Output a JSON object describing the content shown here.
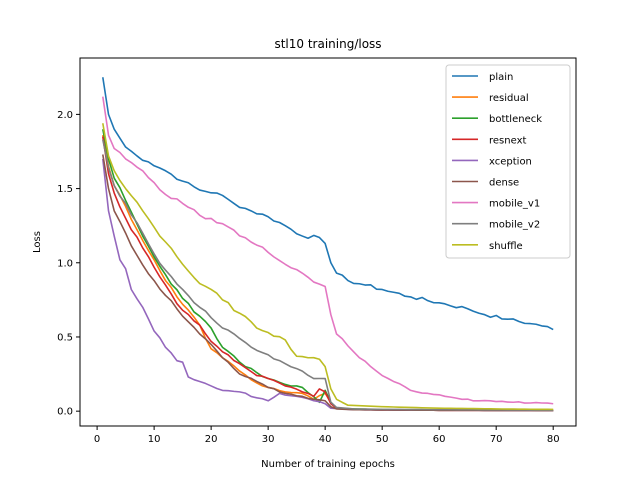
{
  "chart_data": {
    "type": "line",
    "title": "stl10 training/loss",
    "xlabel": "Number of training epochs",
    "ylabel": "Loss",
    "xlim": [
      -3,
      84
    ],
    "ylim": [
      -0.1,
      2.38
    ],
    "xticks": [
      0,
      10,
      20,
      30,
      40,
      50,
      60,
      70,
      80
    ],
    "yticks": [
      0.0,
      0.5,
      1.0,
      1.5,
      2.0
    ],
    "xtick_labels": [
      "0",
      "10",
      "20",
      "30",
      "40",
      "50",
      "60",
      "70",
      "80"
    ],
    "ytick_labels": [
      "0.0",
      "0.5",
      "1.0",
      "1.5",
      "2.0"
    ],
    "grid": false,
    "legend_position": "top-right",
    "x_start": 1,
    "x_end": 80,
    "series": [
      {
        "name": "plain",
        "color": "#1f77b4",
        "keypoints": [
          [
            1,
            2.25
          ],
          [
            2,
            2.0
          ],
          [
            3,
            1.9
          ],
          [
            5,
            1.78
          ],
          [
            7,
            1.72
          ],
          [
            9,
            1.68
          ],
          [
            12,
            1.62
          ],
          [
            15,
            1.55
          ],
          [
            18,
            1.49
          ],
          [
            21,
            1.47
          ],
          [
            24,
            1.4
          ],
          [
            27,
            1.35
          ],
          [
            30,
            1.31
          ],
          [
            33,
            1.25
          ],
          [
            36,
            1.18
          ],
          [
            39,
            1.17
          ],
          [
            40,
            1.13
          ],
          [
            41,
            1.0
          ],
          [
            42,
            0.93
          ],
          [
            44,
            0.88
          ],
          [
            47,
            0.85
          ],
          [
            50,
            0.82
          ],
          [
            55,
            0.77
          ],
          [
            60,
            0.73
          ],
          [
            65,
            0.69
          ],
          [
            68,
            0.65
          ],
          [
            72,
            0.62
          ],
          [
            76,
            0.59
          ],
          [
            79,
            0.57
          ],
          [
            80,
            0.55
          ]
        ]
      },
      {
        "name": "residual",
        "color": "#ff7f0e",
        "keypoints": [
          [
            1,
            1.86
          ],
          [
            2,
            1.65
          ],
          [
            3,
            1.52
          ],
          [
            5,
            1.38
          ],
          [
            8,
            1.15
          ],
          [
            10,
            1.02
          ],
          [
            12,
            0.88
          ],
          [
            15,
            0.72
          ],
          [
            18,
            0.58
          ],
          [
            20,
            0.42
          ],
          [
            22,
            0.36
          ],
          [
            25,
            0.27
          ],
          [
            28,
            0.19
          ],
          [
            30,
            0.16
          ],
          [
            33,
            0.13
          ],
          [
            36,
            0.12
          ],
          [
            38,
            0.08
          ],
          [
            40,
            0.12
          ],
          [
            41,
            0.06
          ],
          [
            42,
            0.02
          ],
          [
            45,
            0.012
          ],
          [
            50,
            0.008
          ],
          [
            60,
            0.006
          ],
          [
            70,
            0.005
          ],
          [
            80,
            0.004
          ]
        ]
      },
      {
        "name": "bottleneck",
        "color": "#2ca02c",
        "keypoints": [
          [
            1,
            1.9
          ],
          [
            2,
            1.7
          ],
          [
            3,
            1.57
          ],
          [
            5,
            1.42
          ],
          [
            8,
            1.18
          ],
          [
            10,
            1.04
          ],
          [
            12,
            0.92
          ],
          [
            15,
            0.76
          ],
          [
            18,
            0.64
          ],
          [
            20,
            0.56
          ],
          [
            22,
            0.43
          ],
          [
            25,
            0.33
          ],
          [
            28,
            0.26
          ],
          [
            30,
            0.22
          ],
          [
            33,
            0.18
          ],
          [
            36,
            0.16
          ],
          [
            39,
            0.06
          ],
          [
            40,
            0.14
          ],
          [
            41,
            0.06
          ],
          [
            42,
            0.02
          ],
          [
            45,
            0.015
          ],
          [
            50,
            0.01
          ],
          [
            60,
            0.008
          ],
          [
            70,
            0.006
          ],
          [
            80,
            0.005
          ]
        ]
      },
      {
        "name": "resnext",
        "color": "#d62728",
        "keypoints": [
          [
            1,
            1.85
          ],
          [
            2,
            1.6
          ],
          [
            3,
            1.47
          ],
          [
            5,
            1.3
          ],
          [
            8,
            1.1
          ],
          [
            10,
            0.97
          ],
          [
            12,
            0.85
          ],
          [
            15,
            0.68
          ],
          [
            18,
            0.58
          ],
          [
            20,
            0.47
          ],
          [
            22,
            0.4
          ],
          [
            25,
            0.32
          ],
          [
            28,
            0.24
          ],
          [
            30,
            0.22
          ],
          [
            33,
            0.17
          ],
          [
            36,
            0.13
          ],
          [
            38,
            0.1
          ],
          [
            39,
            0.15
          ],
          [
            40,
            0.13
          ],
          [
            41,
            0.05
          ],
          [
            42,
            0.02
          ],
          [
            45,
            0.012
          ],
          [
            50,
            0.008
          ],
          [
            60,
            0.006
          ],
          [
            70,
            0.005
          ],
          [
            80,
            0.004
          ]
        ]
      },
      {
        "name": "xception",
        "color": "#9467bd",
        "keypoints": [
          [
            1,
            1.7
          ],
          [
            2,
            1.35
          ],
          [
            3,
            1.18
          ],
          [
            4,
            1.02
          ],
          [
            5,
            0.96
          ],
          [
            6,
            0.82
          ],
          [
            8,
            0.7
          ],
          [
            10,
            0.54
          ],
          [
            12,
            0.43
          ],
          [
            14,
            0.34
          ],
          [
            15,
            0.33
          ],
          [
            16,
            0.23
          ],
          [
            18,
            0.2
          ],
          [
            20,
            0.17
          ],
          [
            22,
            0.14
          ],
          [
            25,
            0.13
          ],
          [
            28,
            0.09
          ],
          [
            30,
            0.07
          ],
          [
            32,
            0.12
          ],
          [
            35,
            0.1
          ],
          [
            38,
            0.07
          ],
          [
            40,
            0.05
          ],
          [
            41,
            0.02
          ],
          [
            45,
            0.01
          ],
          [
            50,
            0.008
          ],
          [
            60,
            0.006
          ],
          [
            70,
            0.005
          ],
          [
            80,
            0.004
          ]
        ]
      },
      {
        "name": "dense",
        "color": "#8c564b",
        "keypoints": [
          [
            1,
            1.73
          ],
          [
            2,
            1.5
          ],
          [
            3,
            1.35
          ],
          [
            5,
            1.2
          ],
          [
            7,
            1.05
          ],
          [
            10,
            0.88
          ],
          [
            12,
            0.78
          ],
          [
            15,
            0.64
          ],
          [
            18,
            0.52
          ],
          [
            20,
            0.45
          ],
          [
            22,
            0.36
          ],
          [
            25,
            0.25
          ],
          [
            28,
            0.2
          ],
          [
            30,
            0.16
          ],
          [
            33,
            0.12
          ],
          [
            36,
            0.1
          ],
          [
            38,
            0.08
          ],
          [
            40,
            0.07
          ],
          [
            41,
            0.03
          ],
          [
            42,
            0.015
          ],
          [
            45,
            0.01
          ],
          [
            50,
            0.008
          ],
          [
            60,
            0.006
          ],
          [
            70,
            0.005
          ],
          [
            80,
            0.004
          ]
        ]
      },
      {
        "name": "mobile_v1",
        "color": "#e377c2",
        "keypoints": [
          [
            1,
            2.12
          ],
          [
            2,
            1.86
          ],
          [
            3,
            1.77
          ],
          [
            5,
            1.7
          ],
          [
            8,
            1.62
          ],
          [
            10,
            1.54
          ],
          [
            12,
            1.46
          ],
          [
            15,
            1.4
          ],
          [
            18,
            1.32
          ],
          [
            21,
            1.27
          ],
          [
            24,
            1.22
          ],
          [
            27,
            1.14
          ],
          [
            30,
            1.07
          ],
          [
            33,
            0.99
          ],
          [
            36,
            0.93
          ],
          [
            38,
            0.87
          ],
          [
            40,
            0.84
          ],
          [
            41,
            0.65
          ],
          [
            42,
            0.52
          ],
          [
            44,
            0.44
          ],
          [
            46,
            0.36
          ],
          [
            48,
            0.3
          ],
          [
            50,
            0.24
          ],
          [
            52,
            0.2
          ],
          [
            55,
            0.14
          ],
          [
            58,
            0.12
          ],
          [
            61,
            0.1
          ],
          [
            64,
            0.08
          ],
          [
            67,
            0.07
          ],
          [
            70,
            0.065
          ],
          [
            73,
            0.06
          ],
          [
            76,
            0.055
          ],
          [
            80,
            0.05
          ]
        ]
      },
      {
        "name": "mobile_v2",
        "color": "#7f7f7f",
        "keypoints": [
          [
            1,
            1.83
          ],
          [
            2,
            1.64
          ],
          [
            3,
            1.52
          ],
          [
            5,
            1.4
          ],
          [
            8,
            1.2
          ],
          [
            10,
            1.06
          ],
          [
            12,
            0.95
          ],
          [
            15,
            0.82
          ],
          [
            18,
            0.7
          ],
          [
            20,
            0.63
          ],
          [
            22,
            0.56
          ],
          [
            25,
            0.49
          ],
          [
            28,
            0.41
          ],
          [
            30,
            0.38
          ],
          [
            33,
            0.32
          ],
          [
            36,
            0.27
          ],
          [
            38,
            0.22
          ],
          [
            40,
            0.22
          ],
          [
            41,
            0.06
          ],
          [
            42,
            0.025
          ],
          [
            45,
            0.015
          ],
          [
            50,
            0.012
          ],
          [
            60,
            0.01
          ],
          [
            70,
            0.008
          ],
          [
            80,
            0.006
          ]
        ]
      },
      {
        "name": "shuffle",
        "color": "#bcbd22",
        "keypoints": [
          [
            1,
            1.94
          ],
          [
            2,
            1.72
          ],
          [
            3,
            1.62
          ],
          [
            5,
            1.5
          ],
          [
            8,
            1.35
          ],
          [
            10,
            1.24
          ],
          [
            12,
            1.14
          ],
          [
            15,
            0.99
          ],
          [
            18,
            0.86
          ],
          [
            20,
            0.82
          ],
          [
            22,
            0.75
          ],
          [
            25,
            0.66
          ],
          [
            28,
            0.56
          ],
          [
            30,
            0.53
          ],
          [
            33,
            0.48
          ],
          [
            35,
            0.37
          ],
          [
            37,
            0.36
          ],
          [
            39,
            0.35
          ],
          [
            40,
            0.3
          ],
          [
            41,
            0.15
          ],
          [
            42,
            0.08
          ],
          [
            44,
            0.04
          ],
          [
            47,
            0.035
          ],
          [
            50,
            0.03
          ],
          [
            55,
            0.025
          ],
          [
            60,
            0.02
          ],
          [
            65,
            0.018
          ],
          [
            70,
            0.015
          ],
          [
            75,
            0.013
          ],
          [
            80,
            0.012
          ]
        ]
      }
    ]
  }
}
